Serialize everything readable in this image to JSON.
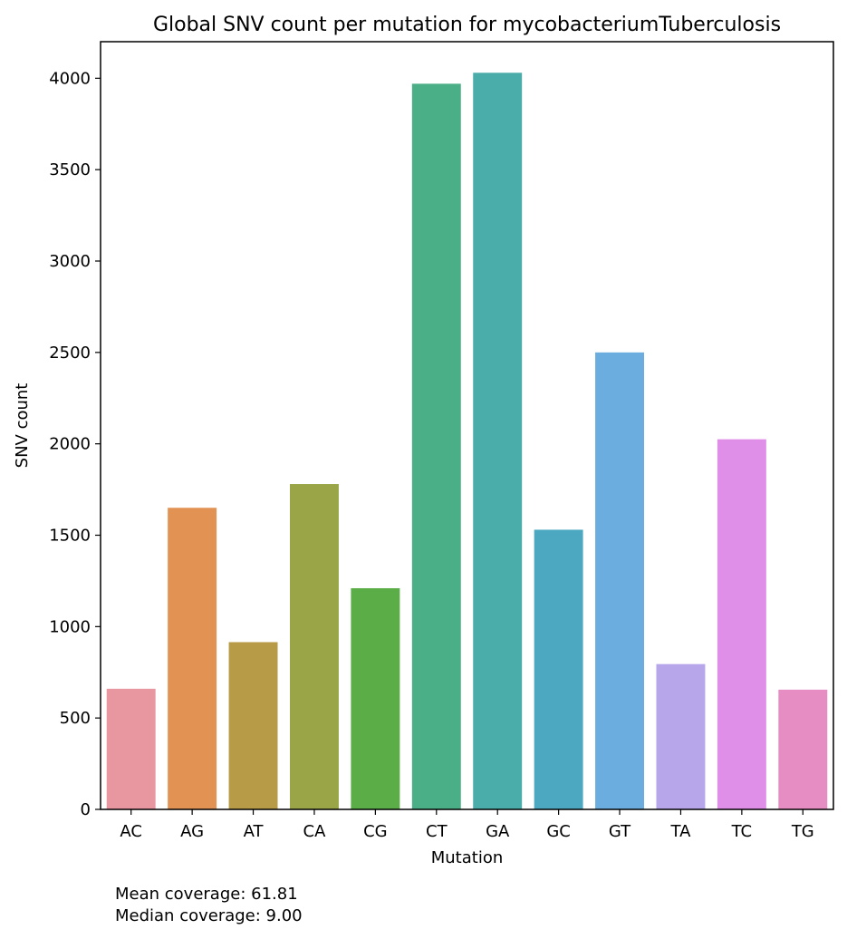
{
  "chart_data": {
    "type": "bar",
    "title": "Global SNV count per mutation for mycobacteriumTuberculosis",
    "xlabel": "Mutation",
    "ylabel": "SNV count",
    "categories": [
      "AC",
      "AG",
      "AT",
      "CA",
      "CG",
      "CT",
      "GA",
      "GC",
      "GT",
      "TA",
      "TC",
      "TG"
    ],
    "values": [
      660,
      1650,
      915,
      1780,
      1210,
      3970,
      4030,
      1530,
      2500,
      795,
      2025,
      655
    ],
    "colors": [
      "#e8969f",
      "#e29252",
      "#b89b47",
      "#99a547",
      "#5bae47",
      "#4aae86",
      "#4aada9",
      "#4ba8c0",
      "#6badde",
      "#b7a7ea",
      "#df8fe8",
      "#e68ec4"
    ],
    "ylim": [
      0,
      4200
    ],
    "yticks": [
      0,
      500,
      1000,
      1500,
      2000,
      2500,
      3000,
      3500,
      4000
    ],
    "grid": false,
    "legend": "none"
  },
  "annotations": {
    "mean_coverage": "Mean coverage: 61.81",
    "median_coverage": "Median coverage: 9.00"
  }
}
